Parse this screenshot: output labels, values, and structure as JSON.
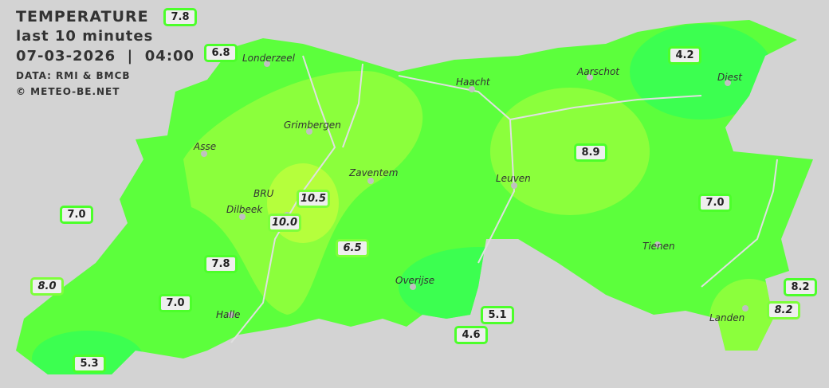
{
  "header": {
    "title": "TEMPERATURE",
    "subtitle": "last 10 minutes",
    "datetime": "07-03-2026  |  04:00",
    "source": "DATA: RMI & BMCB",
    "copyright": "© METEO-BE.NET"
  },
  "colors": {
    "background": "#d3d3d3",
    "base": "#5cff3c",
    "cool": "#3cff50",
    "warm": "#9bff3c",
    "warmest": "#b5ff3c",
    "label_border": "#4cff2a"
  },
  "cities": [
    {
      "name": "Londerzeel"
    },
    {
      "name": "Haacht"
    },
    {
      "name": "Aarschot"
    },
    {
      "name": "Diest"
    },
    {
      "name": "Grimbergen"
    },
    {
      "name": "Asse"
    },
    {
      "name": "Zaventem"
    },
    {
      "name": "Leuven"
    },
    {
      "name": "Dilbeek"
    },
    {
      "name": "BRU"
    },
    {
      "name": "Tienen"
    },
    {
      "name": "Overijse"
    },
    {
      "name": "Halle"
    },
    {
      "name": "Landen"
    }
  ],
  "readings": [
    {
      "value": "7.8",
      "italic": false
    },
    {
      "value": "6.8",
      "italic": false
    },
    {
      "value": "4.2",
      "italic": false
    },
    {
      "value": "8.9",
      "italic": false
    },
    {
      "value": "7.0",
      "italic": false
    },
    {
      "value": "7.0",
      "italic": false
    },
    {
      "value": "10.5",
      "italic": true
    },
    {
      "value": "10.0",
      "italic": true
    },
    {
      "value": "6.5",
      "italic": true
    },
    {
      "value": "7.8",
      "italic": false
    },
    {
      "value": "8.0",
      "italic": true
    },
    {
      "value": "7.0",
      "italic": false
    },
    {
      "value": "5.1",
      "italic": false
    },
    {
      "value": "4.6",
      "italic": false
    },
    {
      "value": "5.3",
      "italic": false
    },
    {
      "value": "8.2",
      "italic": false
    },
    {
      "value": "8.2",
      "italic": true
    }
  ]
}
